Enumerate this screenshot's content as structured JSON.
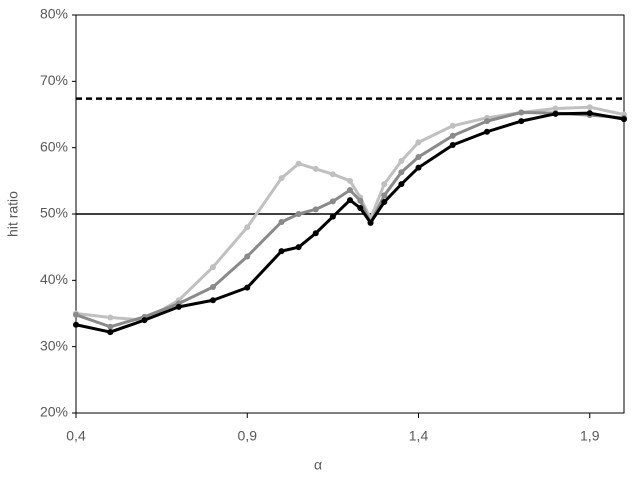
{
  "chart_data": {
    "type": "line",
    "x_label": "α",
    "y_label": "hit ratio",
    "x": [
      0.4,
      0.5,
      0.6,
      0.7,
      0.8,
      0.9,
      1.0,
      1.05,
      1.1,
      1.15,
      1.2,
      1.23,
      1.26,
      1.3,
      1.35,
      1.4,
      1.5,
      1.6,
      1.7,
      1.8,
      1.9,
      2.0
    ],
    "series": [
      {
        "color": "#c0c0c0",
        "values": [
          35.0,
          34.4,
          34.0,
          37.0,
          42.0,
          48.0,
          55.4,
          57.6,
          56.8,
          56.0,
          55.0,
          52.5,
          49.3,
          54.5,
          58.0,
          60.8,
          63.3,
          64.5,
          65.3,
          65.9,
          66.1,
          65.0
        ]
      },
      {
        "color": "#8a8a8a",
        "values": [
          34.8,
          33.0,
          34.5,
          36.5,
          39.0,
          43.6,
          48.8,
          50.0,
          50.7,
          51.9,
          53.6,
          52.0,
          48.6,
          52.8,
          56.3,
          58.6,
          61.8,
          64.0,
          65.3,
          65.2,
          64.9,
          64.5
        ]
      },
      {
        "color": "#000000",
        "values": [
          33.3,
          32.2,
          34.0,
          36.0,
          37.0,
          38.9,
          44.4,
          45.0,
          47.1,
          49.6,
          52.1,
          50.9,
          48.7,
          51.8,
          54.5,
          57.0,
          60.4,
          62.4,
          64.0,
          65.1,
          65.2,
          64.3
        ]
      }
    ],
    "reference_lines": [
      {
        "value": 67.4,
        "style": "dashed"
      },
      {
        "value": 50,
        "style": "solid"
      }
    ],
    "xlim": [
      0.4,
      2.0
    ],
    "xticks": [
      {
        "value": 0.4,
        "label": "0,4"
      },
      {
        "value": 0.9,
        "label": "0,9"
      },
      {
        "value": 1.4,
        "label": "1,4"
      },
      {
        "value": 1.9,
        "label": "1,9"
      }
    ],
    "ylim": [
      20,
      80
    ],
    "yticks": [
      {
        "value": 20,
        "label": "20%"
      },
      {
        "value": 30,
        "label": "30%"
      },
      {
        "value": 40,
        "label": "40%"
      },
      {
        "value": 50,
        "label": "50%"
      },
      {
        "value": 60,
        "label": "60%"
      },
      {
        "value": 70,
        "label": "70%"
      },
      {
        "value": 80,
        "label": "80%"
      }
    ],
    "grid": false
  }
}
